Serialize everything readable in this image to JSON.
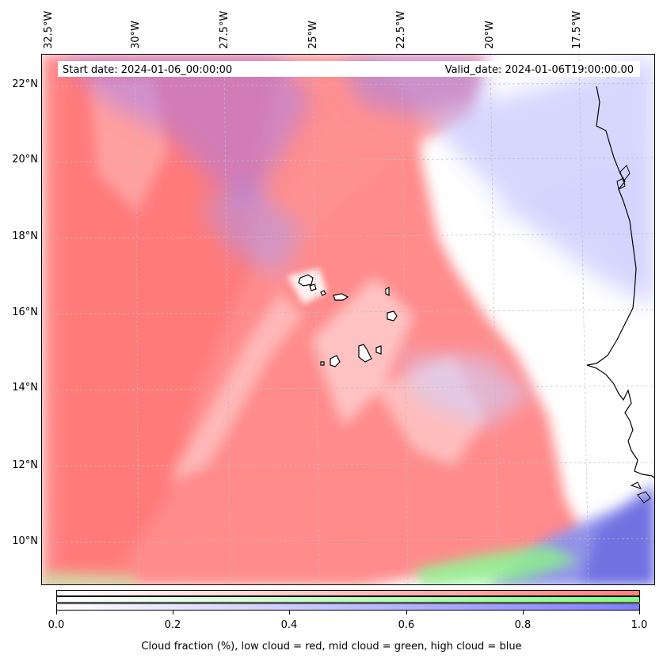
{
  "header": {
    "start_date": "Start date: 2024-01-06_00:00:00",
    "valid_date": "Valid_date: 2024-01-06T19:00:00.00"
  },
  "longitude_labels": [
    "32.5°W",
    "30°W",
    "27.5°W",
    "25°W",
    "22.5°W",
    "20°W",
    "17.5°W"
  ],
  "latitude_labels": [
    "22°N",
    "20°N",
    "18°N",
    "16°N",
    "14°N",
    "12°N",
    "10°N"
  ],
  "colorbar": {
    "ticks": [
      "0.0",
      "0.2",
      "0.4",
      "0.6",
      "0.8",
      "1.0"
    ],
    "label": "Cloud fraction (%), low cloud = red, mid cloud = green, high cloud = blue",
    "colors": {
      "low": "#ff7f7f",
      "mid": "#7fff7f",
      "high": "#7f7fff"
    }
  },
  "map": {
    "region": "Cape Verde / West African coast",
    "extent_lon": [
      -33,
      -15.5
    ],
    "extent_lat": [
      8.8,
      22.8
    ]
  }
}
